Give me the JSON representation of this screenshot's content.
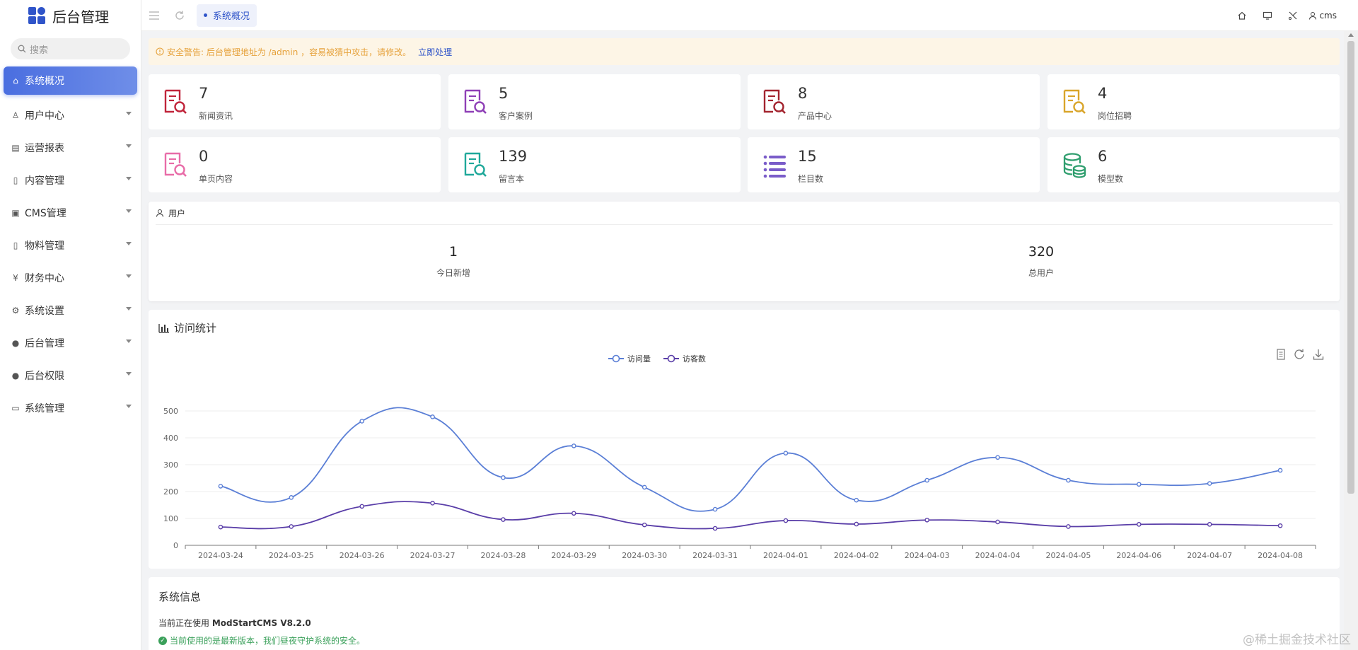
{
  "brand": {
    "title": "后台管理"
  },
  "sidebar": {
    "search_placeholder": "搜索",
    "items": [
      {
        "label": "系统概况",
        "icon": "home-icon"
      },
      {
        "label": "用户中心",
        "icon": "users-icon"
      },
      {
        "label": "运营报表",
        "icon": "chart-icon"
      },
      {
        "label": "内容管理",
        "icon": "file-icon"
      },
      {
        "label": "CMS管理",
        "icon": "database-icon"
      },
      {
        "label": "物料管理",
        "icon": "file-icon"
      },
      {
        "label": "财务中心",
        "icon": "yen-icon"
      },
      {
        "label": "系统设置",
        "icon": "gear-icon"
      },
      {
        "label": "后台管理",
        "icon": "user-circle-icon"
      },
      {
        "label": "后台权限",
        "icon": "user-circle-icon"
      },
      {
        "label": "系统管理",
        "icon": "monitor-icon"
      }
    ]
  },
  "topbar": {
    "active_tab": "系统概况",
    "user_name": "cms"
  },
  "alert": {
    "text": "安全警告: 后台管理地址为 /admin ，容易被猜中攻击，请修改。",
    "link": "立即处理"
  },
  "stats": [
    {
      "value": "7",
      "label": "新闻资讯",
      "color": "#c0243a",
      "icon": "doc-search-icon"
    },
    {
      "value": "5",
      "label": "客户案例",
      "color": "#8e3fb6",
      "icon": "doc-search-icon"
    },
    {
      "value": "8",
      "label": "产品中心",
      "color": "#a3242f",
      "icon": "doc-search-icon"
    },
    {
      "value": "4",
      "label": "岗位招聘",
      "color": "#d9a52b",
      "icon": "doc-search-icon"
    },
    {
      "value": "0",
      "label": "单页内容",
      "color": "#e86ca8",
      "icon": "doc-search-icon"
    },
    {
      "value": "139",
      "label": "留言本",
      "color": "#1fa89a",
      "icon": "doc-search-icon"
    },
    {
      "value": "15",
      "label": "栏目数",
      "color": "#7a5cc9",
      "icon": "list-icon"
    },
    {
      "value": "6",
      "label": "模型数",
      "color": "#2f9e6e",
      "icon": "database-icon"
    }
  ],
  "users": {
    "title": "用户",
    "today_value": "1",
    "today_label": "今日新增",
    "total_value": "320",
    "total_label": "总用户"
  },
  "visits": {
    "title": "访问统计"
  },
  "chart_data": {
    "type": "line",
    "title": "",
    "xlabel": "",
    "ylabel": "",
    "x": [
      "2024-03-24",
      "2024-03-25",
      "2024-03-26",
      "2024-03-27",
      "2024-03-28",
      "2024-03-29",
      "2024-03-30",
      "2024-03-31",
      "2024-04-01",
      "2024-04-02",
      "2024-04-03",
      "2024-04-04",
      "2024-04-05",
      "2024-04-06",
      "2024-04-07",
      "2024-04-08"
    ],
    "ylim": [
      0,
      500
    ],
    "yticks": [
      0,
      100,
      200,
      300,
      400,
      500
    ],
    "grid": true,
    "legend": "top-center",
    "series": [
      {
        "name": "访问量",
        "color": "#5b7fd6",
        "values": [
          220,
          178,
          462,
          478,
          252,
          370,
          216,
          134,
          343,
          168,
          242,
          327,
          242,
          227,
          230,
          279
        ]
      },
      {
        "name": "访客数",
        "color": "#5a3ea8",
        "values": [
          68,
          70,
          145,
          157,
          96,
          119,
          76,
          63,
          92,
          79,
          94,
          87,
          70,
          78,
          78,
          73
        ]
      }
    ]
  },
  "sysinfo": {
    "title": "系统信息",
    "version_prefix": "当前正在使用",
    "version": "ModStartCMS V8.2.0",
    "latest": "当前使用的是最新版本，我们昼夜守护系统的安全。"
  },
  "watermark": "@稀土掘金技术社区"
}
